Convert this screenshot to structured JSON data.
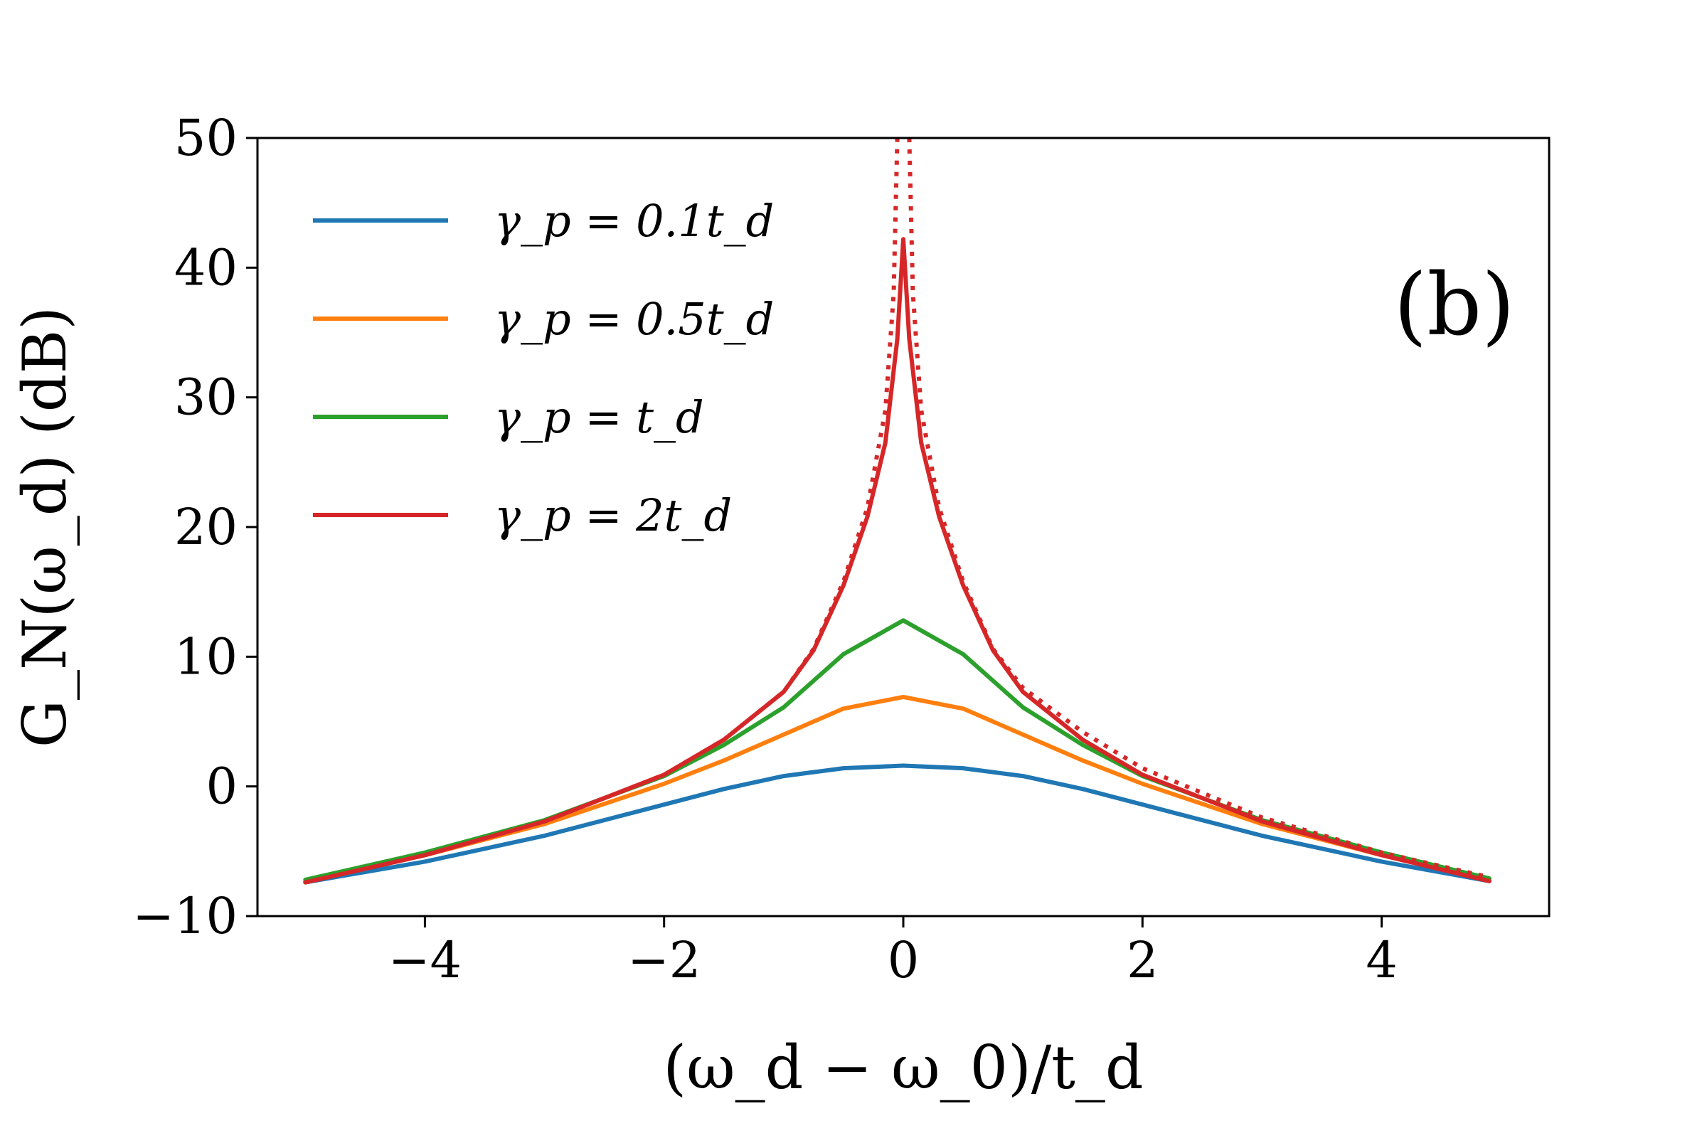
{
  "chart_data": {
    "type": "line",
    "panel_label": "(b)",
    "xlabel": "(ω_d − ω_0)/t_d",
    "ylabel": "G_N(ω_d) (dB)",
    "xlim": [
      -5.4,
      5.4
    ],
    "ylim": [
      -10,
      50
    ],
    "xticks": [
      -4,
      -2,
      0,
      2,
      4
    ],
    "xtick_labels": [
      "−4",
      "−2",
      "0",
      "2",
      "4"
    ],
    "yticks": [
      -10,
      0,
      10,
      20,
      30,
      40,
      50
    ],
    "ytick_labels": [
      "−10",
      "0",
      "10",
      "20",
      "30",
      "40",
      "50"
    ],
    "grid": false,
    "legend_position": "top-left",
    "series": [
      {
        "name": "γ_p = 0.1t_d",
        "color": "#1f77b4",
        "style": "solid",
        "x": [
          -5,
          -4,
          -3,
          -2,
          -1.5,
          -1,
          -0.5,
          0,
          0.5,
          1,
          1.5,
          2,
          3,
          4,
          4.9
        ],
        "y": [
          -7.4,
          -5.8,
          -3.8,
          -1.4,
          -0.2,
          0.8,
          1.4,
          1.6,
          1.4,
          0.8,
          -0.2,
          -1.4,
          -3.8,
          -5.8,
          -7.3
        ]
      },
      {
        "name": "γ_p = 0.5t_d",
        "color": "#ff7f0e",
        "style": "solid",
        "x": [
          -5,
          -4,
          -3,
          -2,
          -1.5,
          -1,
          -0.5,
          0,
          0.5,
          1,
          1.5,
          2,
          3,
          4,
          4.9
        ],
        "y": [
          -7.3,
          -5.3,
          -2.9,
          0.2,
          2.0,
          4.0,
          6.0,
          6.9,
          6.0,
          4.0,
          2.0,
          0.2,
          -2.9,
          -5.3,
          -7.2
        ]
      },
      {
        "name": "γ_p = t_d",
        "color": "#2ca02c",
        "style": "solid",
        "x": [
          -5,
          -4,
          -3,
          -2,
          -1.5,
          -1,
          -0.5,
          0,
          0.5,
          1,
          1.5,
          2,
          3,
          4,
          4.9
        ],
        "y": [
          -7.2,
          -5.1,
          -2.6,
          0.8,
          3.2,
          6.1,
          10.2,
          12.8,
          10.2,
          6.1,
          3.2,
          0.8,
          -2.6,
          -5.1,
          -7.1
        ]
      },
      {
        "name": "γ_p = 2t_d",
        "color": "#d62728",
        "style": "solid",
        "x": [
          -5,
          -4,
          -3,
          -2,
          -1.5,
          -1,
          -0.75,
          -0.5,
          -0.3,
          -0.15,
          -0.05,
          0,
          0.05,
          0.15,
          0.3,
          0.5,
          0.75,
          1,
          1.5,
          2,
          3,
          4,
          4.9
        ],
        "y": [
          -7.4,
          -5.3,
          -2.7,
          0.9,
          3.6,
          7.3,
          10.5,
          15.5,
          20.8,
          26.5,
          34.5,
          42.2,
          34.5,
          26.5,
          20.8,
          15.5,
          10.5,
          7.3,
          3.6,
          0.9,
          -2.7,
          -5.3,
          -7.3
        ]
      },
      {
        "color": "#d62728",
        "style": "dotted",
        "x": [
          -5,
          -4,
          -3,
          -2,
          -1.5,
          -1,
          -0.75,
          -0.5,
          -0.3,
          -0.15,
          -0.08,
          -0.05
        ],
        "y": [
          -7.4,
          -5.3,
          -2.7,
          0.9,
          3.6,
          7.3,
          10.6,
          15.8,
          21.5,
          29,
          38,
          50
        ]
      },
      {
        "color": "#d62728",
        "style": "dotted",
        "x": [
          0.05,
          0.08,
          0.15,
          0.3,
          0.5,
          0.75,
          1,
          1.5,
          2,
          3,
          4,
          4.9
        ],
        "y": [
          50,
          38,
          29,
          21.5,
          15.8,
          10.6,
          7.6,
          4.2,
          1.4,
          -2.4,
          -5.1,
          -7.0
        ]
      }
    ]
  }
}
